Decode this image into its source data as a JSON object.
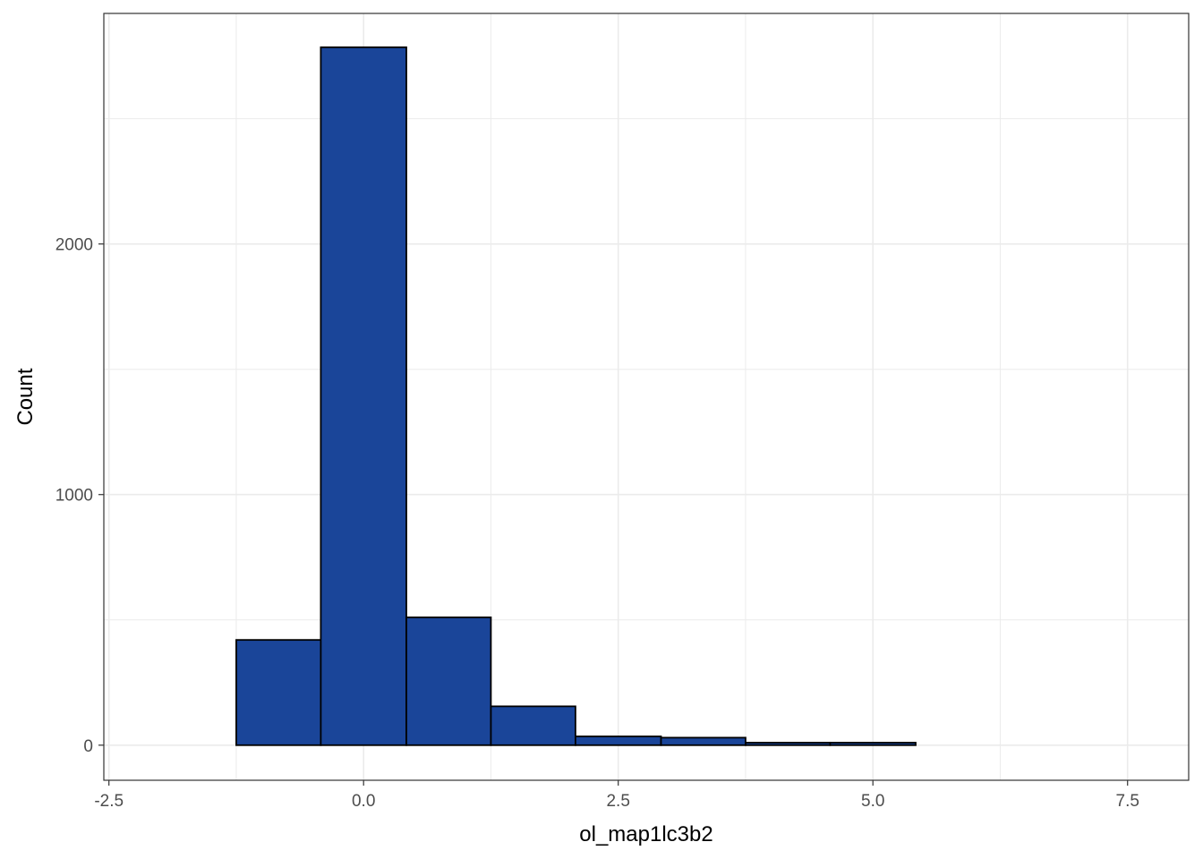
{
  "chart_data": {
    "type": "bar",
    "subtype": "histogram",
    "title": "",
    "xlabel": "ol_map1lc3b2",
    "ylabel": "Count",
    "xlim": [
      -2.55,
      8.1
    ],
    "ylim": [
      -140,
      2920
    ],
    "x_ticks": [
      -2.5,
      0.0,
      2.5,
      5.0,
      7.5
    ],
    "x_tick_labels": [
      "-2.5",
      "0.0",
      "2.5",
      "5.0",
      "7.5"
    ],
    "y_ticks": [
      0,
      1000,
      2000
    ],
    "y_tick_labels": [
      "0",
      "1000",
      "2000"
    ],
    "grid": true,
    "bins": [
      {
        "x0": -2.08,
        "x1": -1.25,
        "count": 0
      },
      {
        "x0": -1.25,
        "x1": -0.42,
        "count": 420
      },
      {
        "x0": -0.42,
        "x1": 0.42,
        "count": 2785
      },
      {
        "x0": 0.42,
        "x1": 1.25,
        "count": 510
      },
      {
        "x0": 1.25,
        "x1": 2.08,
        "count": 155
      },
      {
        "x0": 2.08,
        "x1": 2.92,
        "count": 35
      },
      {
        "x0": 2.92,
        "x1": 3.75,
        "count": 30
      },
      {
        "x0": 3.75,
        "x1": 4.58,
        "count": 10
      },
      {
        "x0": 4.58,
        "x1": 5.42,
        "count": 10
      },
      {
        "x0": 5.42,
        "x1": 6.25,
        "count": 0
      },
      {
        "x0": 6.25,
        "x1": 7.08,
        "count": 0
      },
      {
        "x0": 7.08,
        "x1": 7.92,
        "count": 0
      }
    ],
    "colors": {
      "fill": "#1A4599",
      "outline": "#000000",
      "grid": "#EBEBEB",
      "panel_border": "#333333"
    }
  }
}
